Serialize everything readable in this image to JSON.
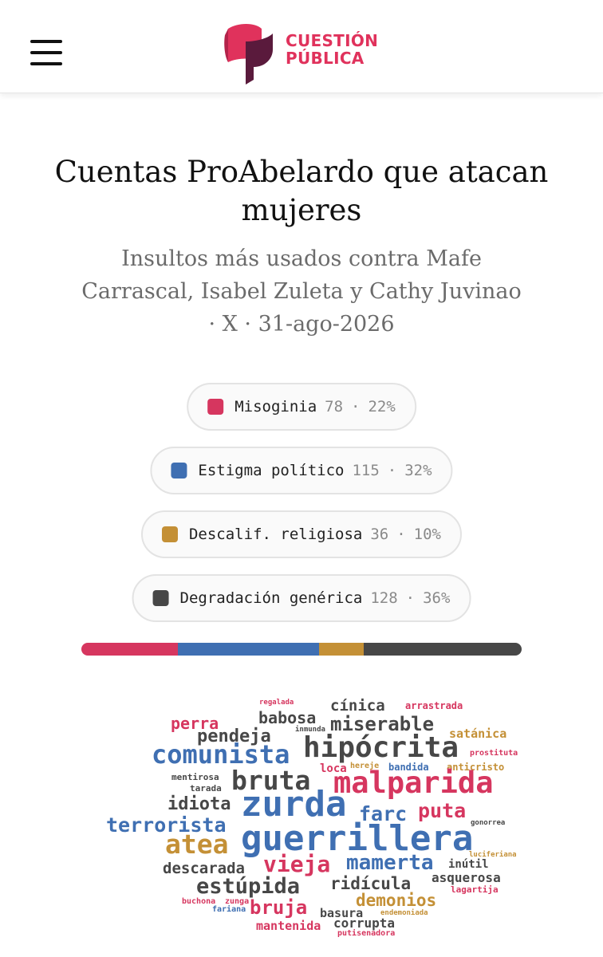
{
  "header": {
    "logo_line1": "CUESTIÓN",
    "logo_line2": "PÚBLICA"
  },
  "title": "Cuentas ProAbelardo que atacan mujeres",
  "subtitle": "Insultos más usados contra Mafe Carrascal, Isabel Zuleta y Cathy Juvinao · X · 31-ago-2026",
  "colors": {
    "misoginia": "#d6365f",
    "estigma": "#3f6fb2",
    "religiosa": "#c49036",
    "generica": "#474747"
  },
  "chart_data": {
    "type": "bar",
    "title": "Cuentas ProAbelardo que atacan mujeres",
    "subtitle": "Insultos más usados contra Mafe Carrascal, Isabel Zuleta y Cathy Juvinao · X · 31-ago-2026",
    "categories": [
      "Misoginia",
      "Estigma político",
      "Descalif. religiosa",
      "Degradación genérica"
    ],
    "values": [
      78,
      115,
      36,
      128
    ],
    "percent_labels": [
      "22%",
      "32%",
      "10%",
      "36%"
    ],
    "color_keys": [
      "misoginia",
      "estigma",
      "religiosa",
      "generica"
    ],
    "stacked": true,
    "words": [
      {
        "text": "regalada",
        "cat": "misoginia"
      },
      {
        "text": "cínica",
        "cat": "generica"
      },
      {
        "text": "arrastrada",
        "cat": "misoginia"
      },
      {
        "text": "perra",
        "cat": "misoginia"
      },
      {
        "text": "babosa",
        "cat": "generica"
      },
      {
        "text": "miserable",
        "cat": "generica"
      },
      {
        "text": "pendeja",
        "cat": "generica"
      },
      {
        "text": "inmunda",
        "cat": "generica"
      },
      {
        "text": "satánica",
        "cat": "religiosa"
      },
      {
        "text": "comunista",
        "cat": "estigma"
      },
      {
        "text": "hipócrita",
        "cat": "generica"
      },
      {
        "text": "prostituta",
        "cat": "misoginia"
      },
      {
        "text": "mentirosa",
        "cat": "generica"
      },
      {
        "text": "loca",
        "cat": "misoginia"
      },
      {
        "text": "hereje",
        "cat": "religiosa"
      },
      {
        "text": "bandida",
        "cat": "estigma"
      },
      {
        "text": "anticristo",
        "cat": "religiosa"
      },
      {
        "text": "tarada",
        "cat": "generica"
      },
      {
        "text": "bruta",
        "cat": "generica"
      },
      {
        "text": "malparida",
        "cat": "misoginia"
      },
      {
        "text": "idiota",
        "cat": "generica"
      },
      {
        "text": "zurda",
        "cat": "estigma"
      },
      {
        "text": "farc",
        "cat": "estigma"
      },
      {
        "text": "puta",
        "cat": "misoginia"
      },
      {
        "text": "terrorista",
        "cat": "estigma"
      },
      {
        "text": "gonorrea",
        "cat": "generica"
      },
      {
        "text": "atea",
        "cat": "religiosa"
      },
      {
        "text": "guerrillera",
        "cat": "estigma"
      },
      {
        "text": "luciferiana",
        "cat": "religiosa"
      },
      {
        "text": "vieja",
        "cat": "misoginia"
      },
      {
        "text": "mamerta",
        "cat": "estigma"
      },
      {
        "text": "descarada",
        "cat": "generica"
      },
      {
        "text": "inútil",
        "cat": "generica"
      },
      {
        "text": "asquerosa",
        "cat": "generica"
      },
      {
        "text": "estúpida",
        "cat": "generica"
      },
      {
        "text": "ridícula",
        "cat": "generica"
      },
      {
        "text": "lagartija",
        "cat": "misoginia"
      },
      {
        "text": "buchona",
        "cat": "misoginia"
      },
      {
        "text": "zunga",
        "cat": "misoginia"
      },
      {
        "text": "demonios",
        "cat": "religiosa"
      },
      {
        "text": "fariana",
        "cat": "estigma"
      },
      {
        "text": "bruja",
        "cat": "misoginia"
      },
      {
        "text": "basura",
        "cat": "generica"
      },
      {
        "text": "endemoniada",
        "cat": "religiosa"
      },
      {
        "text": "corrupta",
        "cat": "generica"
      },
      {
        "text": "mantenida",
        "cat": "misoginia"
      },
      {
        "text": "putisenadora",
        "cat": "misoginia"
      }
    ]
  }
}
